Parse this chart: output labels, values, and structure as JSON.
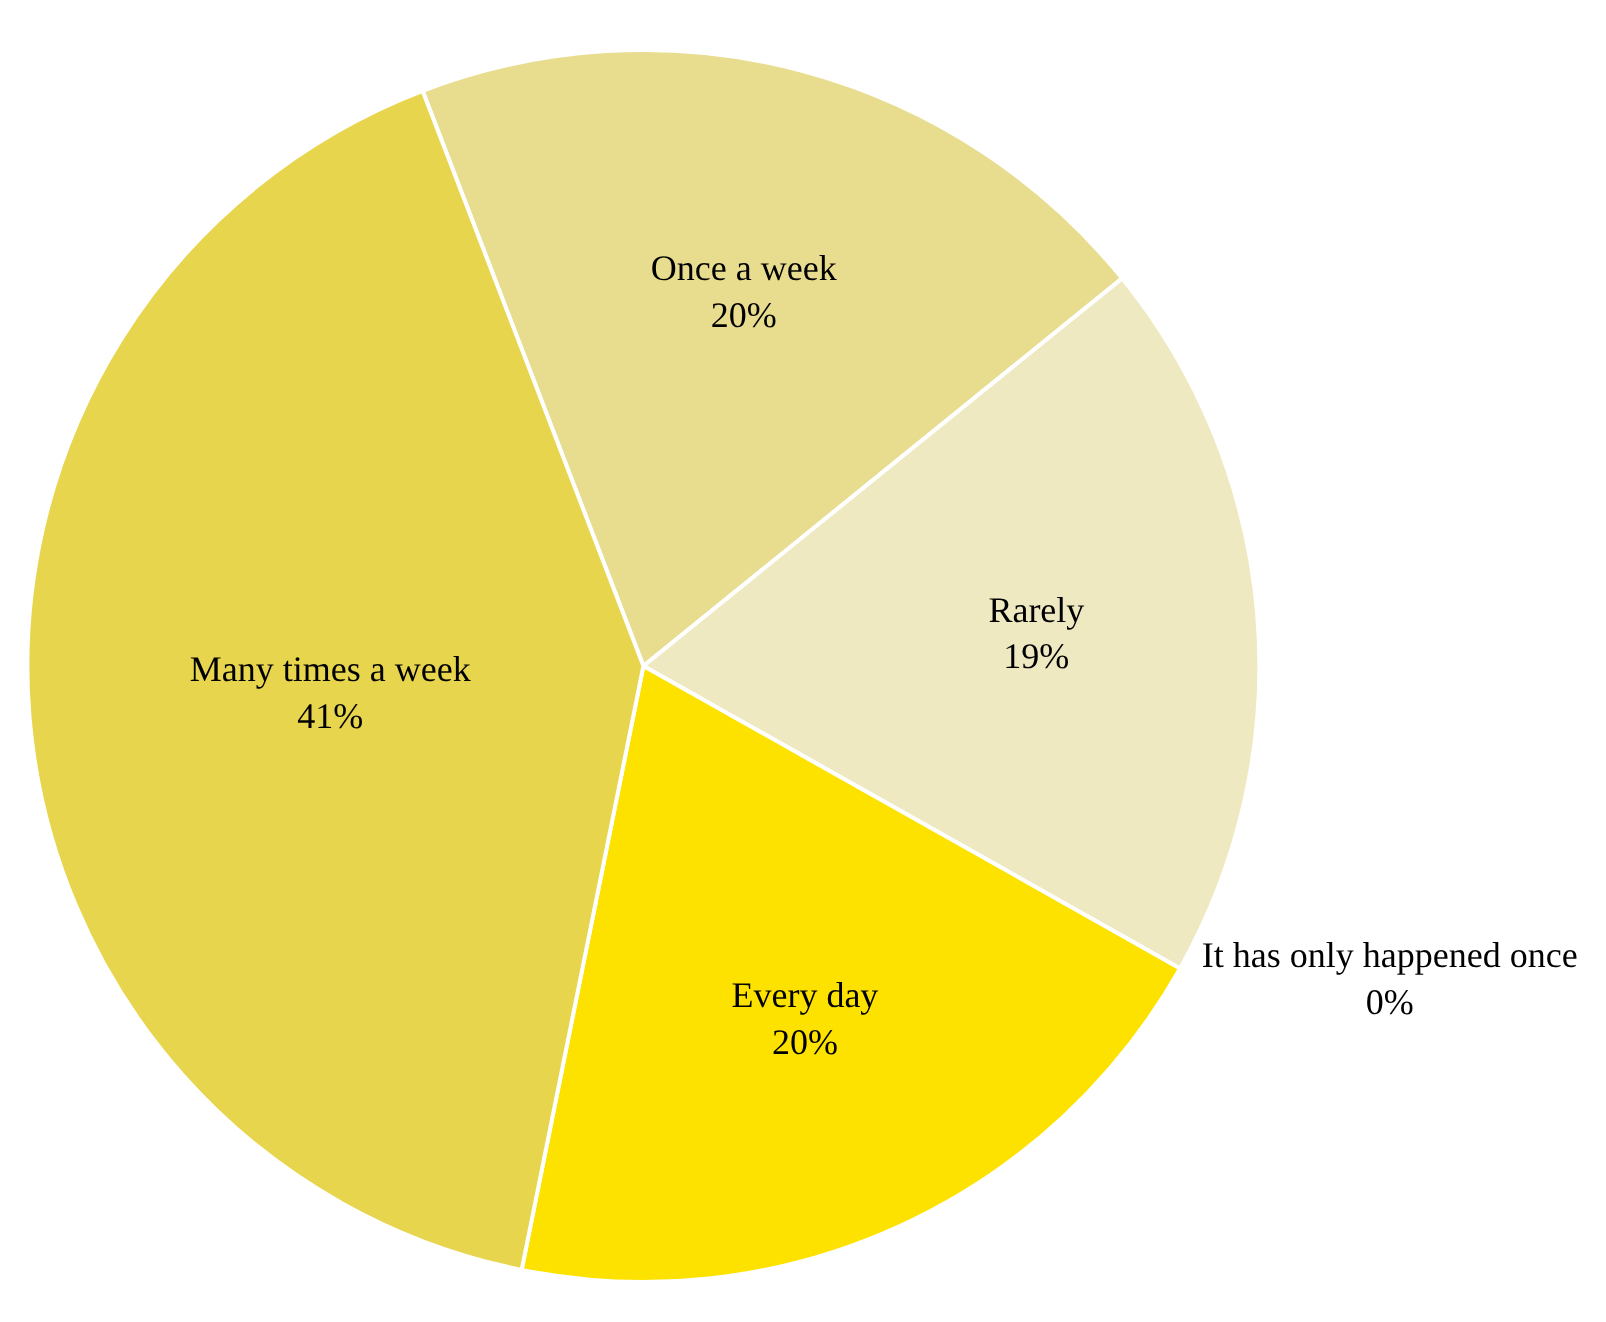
{
  "chart_data": {
    "type": "pie",
    "categories": [
      "Once a week",
      "Rarely",
      "It has only happened once",
      "Every day",
      "Many times a week"
    ],
    "values": [
      20,
      19,
      0,
      20,
      41
    ],
    "value_labels": [
      "20%",
      "19%",
      "0%",
      "20%",
      "41%"
    ],
    "colors": [
      "#e8dd8e",
      "#efe9c2",
      "#d9cc5a",
      "#fde200",
      "#e8d54e"
    ],
    "legend": false
  }
}
